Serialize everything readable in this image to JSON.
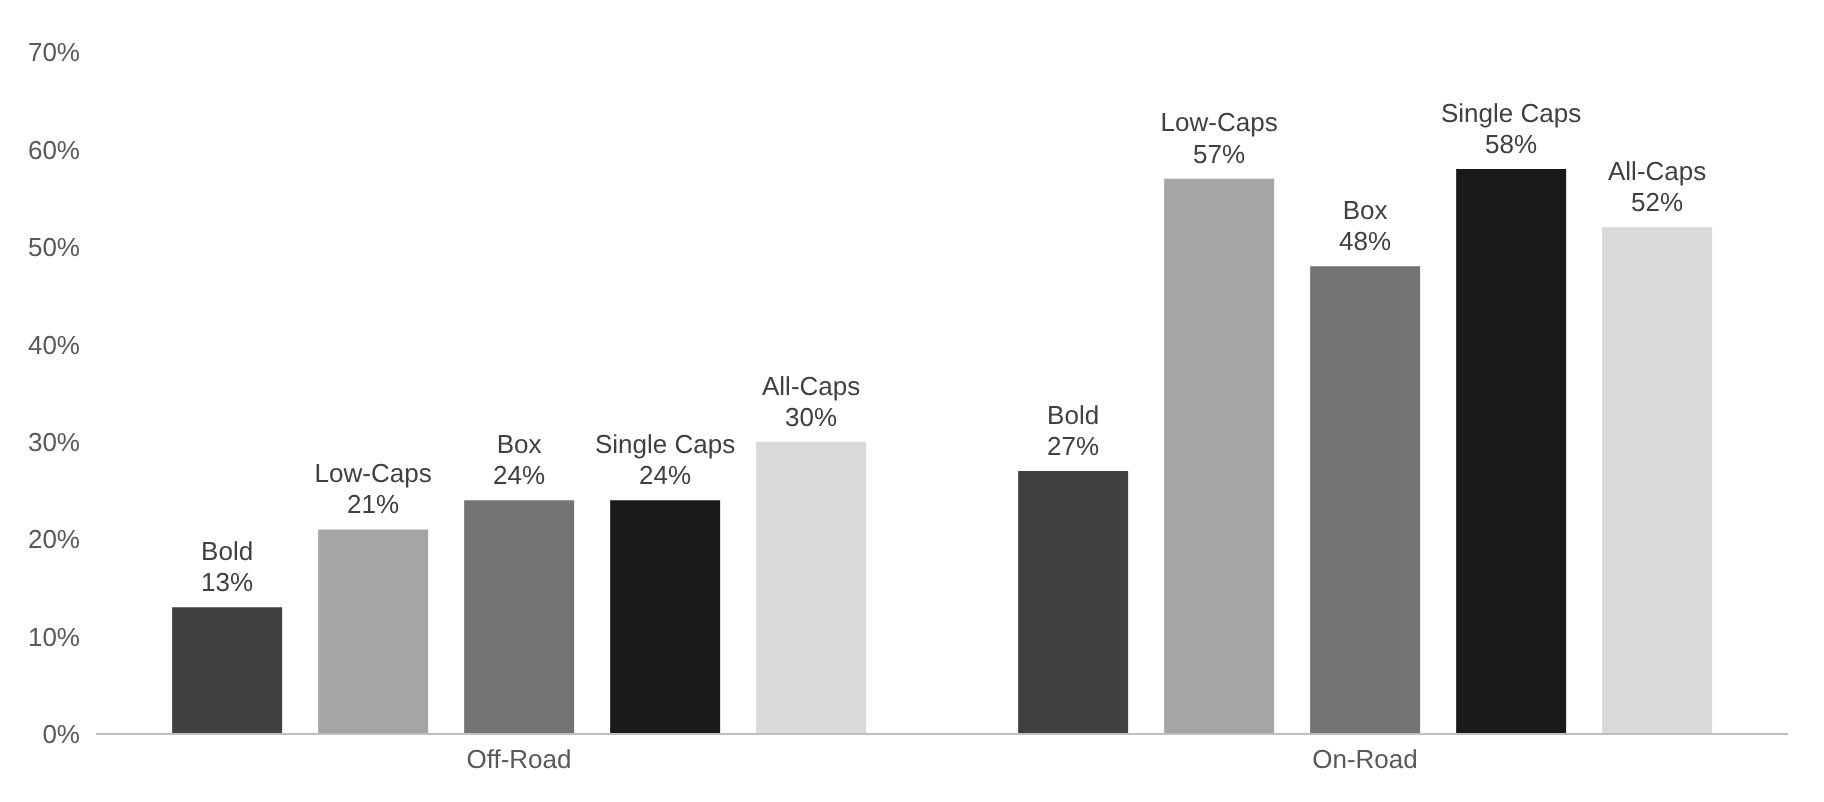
{
  "chart_data": {
    "type": "bar",
    "categories": [
      "Off-Road",
      "On-Road"
    ],
    "series": [
      {
        "name": "Bold",
        "color": "#404040",
        "values": [
          13,
          27
        ],
        "value_labels": [
          "13%",
          "27%"
        ]
      },
      {
        "name": "Low-Caps",
        "color": "#a5a5a5",
        "values": [
          21,
          57
        ],
        "value_labels": [
          "21%",
          "57%"
        ]
      },
      {
        "name": "Box",
        "color": "#747474",
        "values": [
          24,
          48
        ],
        "value_labels": [
          "24%",
          "48%"
        ]
      },
      {
        "name": "Single Caps",
        "color": "#1a1a1a",
        "values": [
          24,
          58
        ],
        "value_labels": [
          "24%",
          "58%"
        ]
      },
      {
        "name": "All-Caps",
        "color": "#d9d9d9",
        "values": [
          30,
          52
        ],
        "value_labels": [
          "30%",
          "52%"
        ]
      }
    ],
    "ylim": [
      0,
      70
    ],
    "yticks": [
      {
        "value": 0,
        "label": "0%"
      },
      {
        "value": 10,
        "label": "10%"
      },
      {
        "value": 20,
        "label": "20%"
      },
      {
        "value": 30,
        "label": "30%"
      },
      {
        "value": 40,
        "label": "40%"
      },
      {
        "value": 50,
        "label": "50%"
      },
      {
        "value": 60,
        "label": "60%"
      },
      {
        "value": 70,
        "label": "70%"
      }
    ],
    "grid": false,
    "legend": false
  }
}
